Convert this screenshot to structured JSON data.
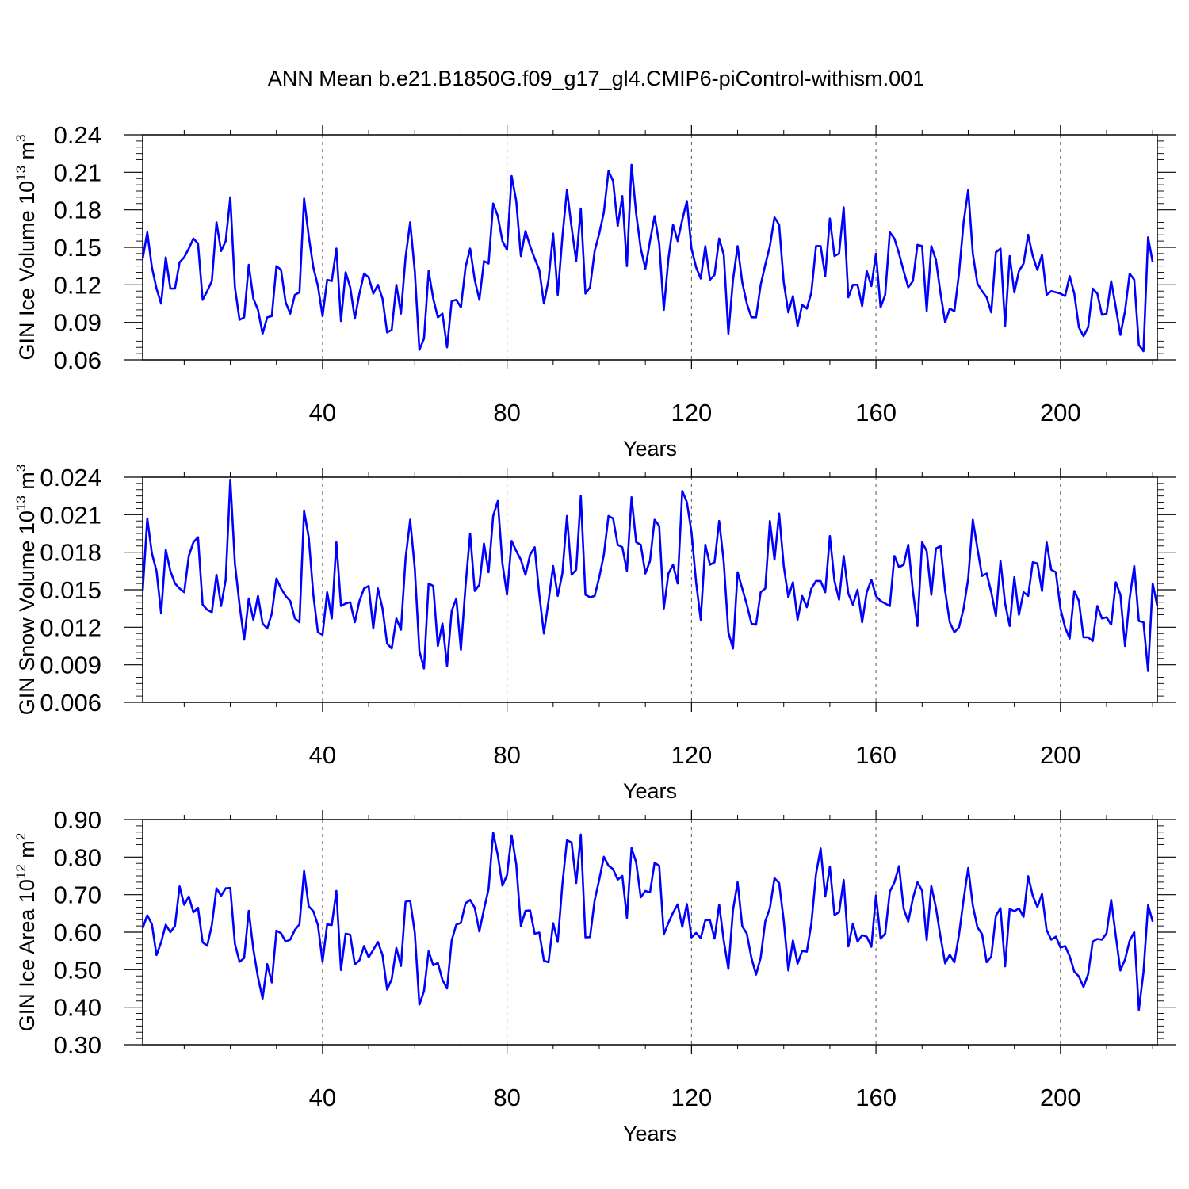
{
  "title": "ANN Mean b.e21.B1850G.f09_g17_gl4.CMIP6-piControl-withism.001",
  "chart_data": [
    {
      "type": "line",
      "ylabel": "GIN Ice Volume 10",
      "ylabel_exp": "13",
      "ylabel_unit": " m",
      "ylabel_unit_exp": "3",
      "xlabel": "Years",
      "xlim": [
        1,
        221
      ],
      "ylim": [
        0.06,
        0.24
      ],
      "x_ticks": [
        "40",
        "80",
        "120",
        "160",
        "200"
      ],
      "y_ticks": [
        "0.06",
        "0.09",
        "0.12",
        "0.15",
        "0.18",
        "0.21",
        "0.24"
      ],
      "grid": "vertical-dashed",
      "color": "#0000ff",
      "values": [
        0.141,
        0.162,
        0.134,
        0.117,
        0.105,
        0.142,
        0.117,
        0.117,
        0.138,
        0.142,
        0.149,
        0.157,
        0.153,
        0.108,
        0.115,
        0.123,
        0.17,
        0.147,
        0.155,
        0.19,
        0.118,
        0.092,
        0.094,
        0.136,
        0.109,
        0.1,
        0.081,
        0.094,
        0.095,
        0.135,
        0.132,
        0.106,
        0.097,
        0.112,
        0.114,
        0.189,
        0.159,
        0.134,
        0.119,
        0.095,
        0.124,
        0.123,
        0.149,
        0.091,
        0.13,
        0.118,
        0.093,
        0.113,
        0.129,
        0.126,
        0.113,
        0.12,
        0.109,
        0.082,
        0.084,
        0.12,
        0.097,
        0.142,
        0.17,
        0.131,
        0.068,
        0.077,
        0.131,
        0.109,
        0.094,
        0.097,
        0.07,
        0.107,
        0.108,
        0.102,
        0.134,
        0.149,
        0.124,
        0.108,
        0.139,
        0.137,
        0.185,
        0.175,
        0.155,
        0.148,
        0.207,
        0.187,
        0.143,
        0.163,
        0.151,
        0.141,
        0.132,
        0.105,
        0.124,
        0.161,
        0.112,
        0.158,
        0.196,
        0.166,
        0.139,
        0.181,
        0.113,
        0.118,
        0.147,
        0.161,
        0.178,
        0.211,
        0.203,
        0.167,
        0.191,
        0.135,
        0.216,
        0.177,
        0.149,
        0.133,
        0.155,
        0.175,
        0.153,
        0.1,
        0.141,
        0.168,
        0.155,
        0.172,
        0.187,
        0.149,
        0.134,
        0.125,
        0.151,
        0.124,
        0.128,
        0.157,
        0.144,
        0.081,
        0.124,
        0.151,
        0.122,
        0.105,
        0.094,
        0.094,
        0.12,
        0.136,
        0.151,
        0.174,
        0.168,
        0.122,
        0.098,
        0.111,
        0.087,
        0.104,
        0.101,
        0.114,
        0.151,
        0.151,
        0.127,
        0.173,
        0.143,
        0.145,
        0.182,
        0.11,
        0.12,
        0.12,
        0.103,
        0.131,
        0.119,
        0.145,
        0.102,
        0.112,
        0.162,
        0.157,
        0.145,
        0.131,
        0.118,
        0.123,
        0.152,
        0.151,
        0.099,
        0.151,
        0.14,
        0.113,
        0.09,
        0.101,
        0.099,
        0.129,
        0.17,
        0.196,
        0.145,
        0.121,
        0.115,
        0.11,
        0.098,
        0.146,
        0.149,
        0.087,
        0.143,
        0.114,
        0.131,
        0.137,
        0.16,
        0.143,
        0.132,
        0.144,
        0.112,
        0.115,
        0.114,
        0.113,
        0.111,
        0.127,
        0.113,
        0.086,
        0.079,
        0.086,
        0.117,
        0.113,
        0.096,
        0.097,
        0.123,
        0.102,
        0.08,
        0.099,
        0.129,
        0.124,
        0.072,
        0.067,
        0.158,
        0.138
      ]
    },
    {
      "type": "line",
      "ylabel": "GIN Snow Volume 10",
      "ylabel_exp": "13",
      "ylabel_unit": " m",
      "ylabel_unit_exp": "3",
      "xlabel": "Years",
      "xlim": [
        1,
        221
      ],
      "ylim": [
        0.006,
        0.024
      ],
      "x_ticks": [
        "40",
        "80",
        "120",
        "160",
        "200"
      ],
      "y_ticks": [
        "0.006",
        "0.009",
        "0.012",
        "0.015",
        "0.018",
        "0.021",
        "0.024"
      ],
      "grid": "vertical-dashed",
      "color": "#0000ff",
      "values": [
        0.0149,
        0.0207,
        0.0179,
        0.0165,
        0.0131,
        0.0182,
        0.0165,
        0.0155,
        0.0151,
        0.0148,
        0.0177,
        0.0188,
        0.0192,
        0.0138,
        0.0134,
        0.0132,
        0.0162,
        0.0137,
        0.0158,
        0.0238,
        0.0171,
        0.0138,
        0.011,
        0.0143,
        0.0126,
        0.0145,
        0.0123,
        0.0119,
        0.0131,
        0.0159,
        0.0151,
        0.0145,
        0.0141,
        0.0127,
        0.0124,
        0.0213,
        0.0192,
        0.0146,
        0.0116,
        0.0114,
        0.0148,
        0.0127,
        0.0188,
        0.0137,
        0.0139,
        0.014,
        0.0124,
        0.0141,
        0.0151,
        0.0153,
        0.0119,
        0.0151,
        0.0135,
        0.0107,
        0.0103,
        0.0127,
        0.0118,
        0.0175,
        0.0206,
        0.0167,
        0.0101,
        0.0087,
        0.0155,
        0.0153,
        0.0105,
        0.0123,
        0.0089,
        0.0133,
        0.0143,
        0.0102,
        0.0153,
        0.0195,
        0.0149,
        0.0154,
        0.0187,
        0.0164,
        0.0209,
        0.0221,
        0.0171,
        0.0146,
        0.0189,
        0.0181,
        0.0174,
        0.0162,
        0.0178,
        0.0184,
        0.0146,
        0.0115,
        0.0141,
        0.0169,
        0.0145,
        0.0163,
        0.0209,
        0.0162,
        0.0166,
        0.0225,
        0.0146,
        0.0144,
        0.0145,
        0.016,
        0.0178,
        0.0209,
        0.0207,
        0.0186,
        0.0184,
        0.0165,
        0.0224,
        0.0188,
        0.0186,
        0.0163,
        0.0173,
        0.0206,
        0.0201,
        0.0135,
        0.0163,
        0.017,
        0.0155,
        0.0229,
        0.022,
        0.0196,
        0.0156,
        0.0126,
        0.0186,
        0.017,
        0.0172,
        0.0205,
        0.0172,
        0.0116,
        0.0103,
        0.0164,
        0.0151,
        0.0138,
        0.0123,
        0.0122,
        0.0148,
        0.0151,
        0.0205,
        0.0174,
        0.0211,
        0.0169,
        0.0144,
        0.0156,
        0.0126,
        0.0145,
        0.0136,
        0.0151,
        0.0157,
        0.0157,
        0.0148,
        0.0193,
        0.0157,
        0.0142,
        0.0177,
        0.0147,
        0.0138,
        0.015,
        0.0124,
        0.0148,
        0.0158,
        0.0145,
        0.0141,
        0.0139,
        0.0137,
        0.0177,
        0.0168,
        0.017,
        0.0186,
        0.0149,
        0.0121,
        0.0188,
        0.0181,
        0.0146,
        0.0183,
        0.0185,
        0.0149,
        0.0124,
        0.0116,
        0.012,
        0.0135,
        0.0159,
        0.0206,
        0.0183,
        0.0161,
        0.0163,
        0.0148,
        0.0129,
        0.0173,
        0.0139,
        0.0121,
        0.016,
        0.013,
        0.0148,
        0.0145,
        0.0172,
        0.0171,
        0.0149,
        0.0188,
        0.0166,
        0.0164,
        0.0135,
        0.012,
        0.0111,
        0.0149,
        0.0141,
        0.0112,
        0.0112,
        0.0109,
        0.0137,
        0.0127,
        0.0128,
        0.0122,
        0.0156,
        0.0146,
        0.0105,
        0.0143,
        0.0169,
        0.0125,
        0.0124,
        0.0085,
        0.0155,
        0.0137
      ]
    },
    {
      "type": "line",
      "ylabel": "GIN Ice Area 10",
      "ylabel_exp": "12",
      "ylabel_unit": " m",
      "ylabel_unit_exp": "2",
      "xlabel": "Years",
      "xlim": [
        1,
        221
      ],
      "ylim": [
        0.3,
        0.9
      ],
      "x_ticks": [
        "40",
        "80",
        "120",
        "160",
        "200"
      ],
      "y_ticks": [
        "0.30",
        "0.40",
        "0.50",
        "0.60",
        "0.70",
        "0.80",
        "0.90"
      ],
      "grid": "vertical-dashed",
      "color": "#0000ff",
      "values": [
        0.611,
        0.645,
        0.621,
        0.539,
        0.573,
        0.62,
        0.6,
        0.617,
        0.722,
        0.673,
        0.695,
        0.653,
        0.665,
        0.573,
        0.564,
        0.619,
        0.717,
        0.697,
        0.717,
        0.718,
        0.569,
        0.521,
        0.531,
        0.657,
        0.554,
        0.48,
        0.423,
        0.515,
        0.466,
        0.604,
        0.597,
        0.575,
        0.58,
        0.606,
        0.621,
        0.763,
        0.669,
        0.656,
        0.619,
        0.521,
        0.621,
        0.619,
        0.71,
        0.499,
        0.596,
        0.593,
        0.514,
        0.525,
        0.563,
        0.533,
        0.553,
        0.574,
        0.539,
        0.447,
        0.475,
        0.558,
        0.51,
        0.681,
        0.684,
        0.599,
        0.407,
        0.443,
        0.549,
        0.512,
        0.518,
        0.473,
        0.45,
        0.578,
        0.62,
        0.625,
        0.677,
        0.686,
        0.665,
        0.602,
        0.661,
        0.715,
        0.865,
        0.805,
        0.724,
        0.752,
        0.858,
        0.781,
        0.617,
        0.657,
        0.658,
        0.596,
        0.599,
        0.524,
        0.52,
        0.624,
        0.574,
        0.727,
        0.845,
        0.839,
        0.731,
        0.86,
        0.586,
        0.587,
        0.685,
        0.74,
        0.801,
        0.777,
        0.768,
        0.74,
        0.75,
        0.638,
        0.824,
        0.786,
        0.693,
        0.71,
        0.706,
        0.785,
        0.777,
        0.594,
        0.625,
        0.652,
        0.674,
        0.614,
        0.675,
        0.586,
        0.598,
        0.584,
        0.632,
        0.632,
        0.583,
        0.673,
        0.577,
        0.502,
        0.659,
        0.733,
        0.616,
        0.596,
        0.531,
        0.487,
        0.532,
        0.629,
        0.664,
        0.744,
        0.731,
        0.631,
        0.498,
        0.578,
        0.516,
        0.55,
        0.548,
        0.624,
        0.755,
        0.823,
        0.695,
        0.775,
        0.646,
        0.653,
        0.739,
        0.562,
        0.623,
        0.575,
        0.592,
        0.588,
        0.561,
        0.698,
        0.583,
        0.596,
        0.708,
        0.733,
        0.776,
        0.663,
        0.628,
        0.69,
        0.733,
        0.711,
        0.579,
        0.723,
        0.665,
        0.587,
        0.517,
        0.54,
        0.52,
        0.593,
        0.687,
        0.771,
        0.671,
        0.613,
        0.595,
        0.52,
        0.535,
        0.644,
        0.664,
        0.509,
        0.662,
        0.656,
        0.663,
        0.641,
        0.749,
        0.697,
        0.667,
        0.702,
        0.606,
        0.58,
        0.588,
        0.559,
        0.563,
        0.536,
        0.495,
        0.482,
        0.454,
        0.488,
        0.575,
        0.582,
        0.58,
        0.597,
        0.686,
        0.59,
        0.498,
        0.527,
        0.577,
        0.6,
        0.393,
        0.493,
        0.672,
        0.628
      ]
    }
  ]
}
